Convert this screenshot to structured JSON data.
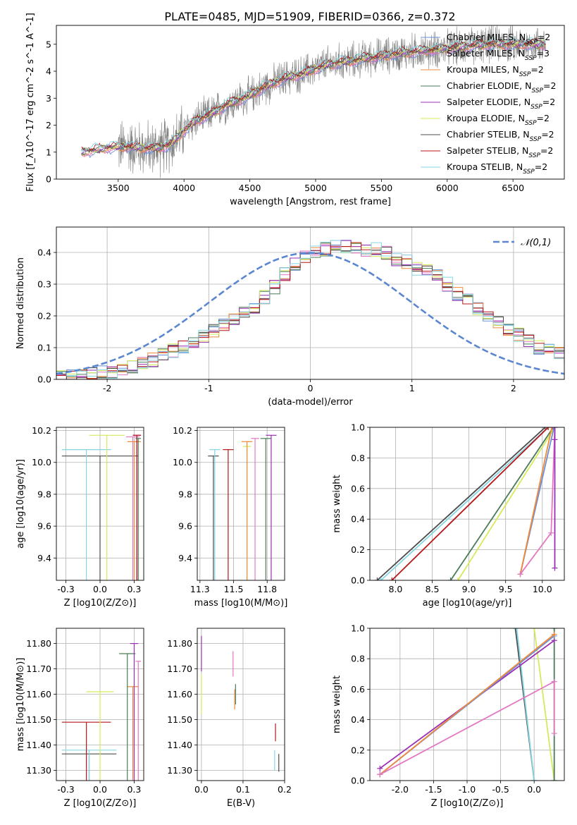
{
  "figure": {
    "title": "PLATE=0485, MJD=51909, FIBERID=0366, z=0.372"
  },
  "colors": {
    "chabrier_miles": "#6b8fd6",
    "salpeter_miles": "#e377c2",
    "kroupa_miles": "#f08a3b",
    "chabrier_elodie": "#4a7c59",
    "salpeter_elodie": "#9a2fb5",
    "kroupa_elodie": "#d7e95b",
    "chabrier_stelib": "#4b4b4b",
    "salpeter_stelib": "#b5171a",
    "kroupa_stelib": "#86d6e3",
    "observed": "#808080",
    "normal": "#5b86d0"
  },
  "chart_data": [
    {
      "id": "spectrum",
      "type": "line",
      "xlabel": "wavelength [Angstrom, rest frame]",
      "ylabel": "Flux [f_λ10^-17 erg cm^-2 s^-1 A^-1]",
      "xlim": [
        3030,
        6890
      ],
      "ylim": [
        0,
        5.7
      ],
      "xticks": [
        3500,
        4000,
        4500,
        5000,
        5500,
        6000,
        6500
      ],
      "yticks": [
        0,
        1,
        2,
        3,
        4,
        5
      ],
      "legend_position": "top-right",
      "legend": [
        {
          "key": "chabrier_miles",
          "base": "Chabrier MILES, N",
          "sub": "SSP",
          "tail": "=2"
        },
        {
          "key": "salpeter_miles",
          "base": "Salpeter MILES, N",
          "sub": "SSP",
          "tail": "=3"
        },
        {
          "key": "kroupa_miles",
          "base": "Kroupa MILES, N",
          "sub": "SSP",
          "tail": "=2"
        },
        {
          "key": "chabrier_elodie",
          "base": "Chabrier ELODIE, N",
          "sub": "SSP",
          "tail": "=2"
        },
        {
          "key": "salpeter_elodie",
          "base": "Salpeter ELODIE, N",
          "sub": "SSP",
          "tail": "=2"
        },
        {
          "key": "kroupa_elodie",
          "base": "Kroupa ELODIE, N",
          "sub": "SSP",
          "tail": "=2"
        },
        {
          "key": "chabrier_stelib",
          "base": "Chabrier STELIB, N",
          "sub": "SSP",
          "tail": "=2"
        },
        {
          "key": "salpeter_stelib",
          "base": "Salpeter STELIB, N",
          "sub": "SSP",
          "tail": "=2"
        },
        {
          "key": "kroupa_stelib",
          "base": "Kroupa STELIB, N",
          "sub": "SSP",
          "tail": "=2"
        }
      ],
      "observed_start": 3500,
      "model_start": 3220,
      "continuum": {
        "x": [
          3220,
          3400,
          3500,
          3600,
          3700,
          3800,
          3900,
          4000,
          4100,
          4200,
          4300,
          4400,
          4500,
          4600,
          4700,
          4800,
          4900,
          5000,
          5100,
          5200,
          5300,
          5400,
          5500,
          5600,
          5700,
          5800,
          5900,
          6000,
          6100,
          6200,
          6300,
          6400,
          6500,
          6600,
          6750
        ],
        "y": [
          1.0,
          1.15,
          1.2,
          1.2,
          1.15,
          1.15,
          1.3,
          1.8,
          2.2,
          2.4,
          2.7,
          2.9,
          3.1,
          3.4,
          3.6,
          3.8,
          3.9,
          4.1,
          4.25,
          4.35,
          4.4,
          4.5,
          4.55,
          4.65,
          4.7,
          4.75,
          4.8,
          4.85,
          4.9,
          4.95,
          5.0,
          5.0,
          5.0,
          5.0,
          5.0
        ]
      }
    },
    {
      "id": "residuals",
      "type": "line",
      "xlabel": "(data-model)/error",
      "ylabel": "Normed distribution",
      "xlim": [
        -2.5,
        2.5
      ],
      "ylim": [
        0,
        0.48
      ],
      "xticks": [
        -2,
        -1,
        0,
        1,
        2
      ],
      "yticks": [
        0.0,
        0.1,
        0.2,
        0.3,
        0.4
      ],
      "legend_label": "𝒩(0,1)",
      "legend_position": "top-right",
      "bin_width": 0.1,
      "bin_start": -2.5,
      "base_hist": [
        0.005,
        0.008,
        0.012,
        0.015,
        0.02,
        0.025,
        0.03,
        0.04,
        0.05,
        0.062,
        0.075,
        0.09,
        0.105,
        0.12,
        0.138,
        0.155,
        0.17,
        0.19,
        0.21,
        0.23,
        0.26,
        0.29,
        0.33,
        0.36,
        0.39,
        0.4,
        0.41,
        0.42,
        0.42,
        0.41,
        0.41,
        0.41,
        0.4,
        0.38,
        0.37,
        0.35,
        0.34,
        0.33,
        0.3,
        0.27,
        0.25,
        0.22,
        0.2,
        0.18,
        0.16,
        0.14,
        0.12,
        0.1,
        0.09,
        0.08,
        0.07,
        0.065,
        0.06,
        0.055,
        0.05,
        0.045,
        0.04,
        0.045,
        0.05,
        0.05
      ]
    },
    {
      "id": "age_vs_z",
      "type": "scatter",
      "xlabel": "Z [log10(Z/Z⊙)]",
      "ylabel": "age [log10(age/yr)]",
      "xlim": [
        -0.32,
        0.32
      ],
      "ylim": [
        9.26,
        10.22
      ],
      "xticks": [
        -0.25,
        0.0,
        0.25
      ],
      "yticks": [
        9.4,
        9.6,
        9.8,
        10.0,
        10.2
      ],
      "grid": true,
      "series": [
        {
          "key": "chabrier_stelib",
          "points": [
            {
              "x": 0.0,
              "xerr": 0.28,
              "y": 10.04
            }
          ]
        },
        {
          "key": "kroupa_stelib",
          "points": [
            {
              "x": -0.1,
              "xerr": 0.18,
              "y": 10.08
            }
          ]
        },
        {
          "key": "kroupa_elodie",
          "points": [
            {
              "x": 0.05,
              "xerr": 0.13,
              "y": 10.17
            }
          ]
        },
        {
          "key": "salpeter_miles",
          "points": [
            {
              "x": 0.24,
              "xerr": 0.05,
              "y": 10.16
            }
          ]
        },
        {
          "key": "kroupa_miles",
          "points": [
            {
              "x": 0.25,
              "xerr": 0.05,
              "y": 10.13
            }
          ]
        },
        {
          "key": "salpeter_elodie",
          "points": [
            {
              "x": 0.27,
              "xerr": 0.03,
              "y": 10.17
            }
          ]
        },
        {
          "key": "salpeter_stelib",
          "points": [
            {
              "x": 0.27,
              "xerr": 0.03,
              "y": 10.17
            }
          ]
        },
        {
          "key": "chabrier_elodie",
          "points": [
            {
              "x": 0.28,
              "xerr": 0.02,
              "y": 10.15
            }
          ]
        }
      ]
    },
    {
      "id": "age_vs_mass",
      "type": "scatter",
      "xlabel": "mass [log10(M/M⊙)]",
      "ylabel": "",
      "xlim": [
        11.23,
        11.88
      ],
      "ylim": [
        9.26,
        10.22
      ],
      "xticks": [
        11.25,
        11.5,
        11.75
      ],
      "yticks": [
        9.4,
        9.6,
        9.8,
        10.0,
        10.2
      ],
      "grid": true,
      "series": [
        {
          "key": "chabrier_stelib",
          "points": [
            {
              "x": 11.35,
              "xerr": 0.04,
              "y": 10.04
            }
          ]
        },
        {
          "key": "kroupa_stelib",
          "points": [
            {
              "x": 11.36,
              "xerr": 0.04,
              "y": 10.08
            }
          ]
        },
        {
          "key": "salpeter_stelib",
          "points": [
            {
              "x": 11.46,
              "xerr": 0.04,
              "y": 10.08
            }
          ]
        },
        {
          "key": "kroupa_elodie",
          "points": [
            {
              "x": 11.6,
              "xerr": 0.03,
              "y": 10.1
            }
          ]
        },
        {
          "key": "kroupa_miles",
          "points": [
            {
              "x": 11.6,
              "xerr": 0.04,
              "y": 10.13
            }
          ]
        },
        {
          "key": "salpeter_miles",
          "points": [
            {
              "x": 11.66,
              "xerr": 0.03,
              "y": 10.15
            }
          ]
        },
        {
          "key": "chabrier_elodie",
          "points": [
            {
              "x": 11.74,
              "xerr": 0.04,
              "y": 10.15
            }
          ]
        },
        {
          "key": "salpeter_elodie",
          "points": [
            {
              "x": 11.78,
              "xerr": 0.04,
              "y": 10.17
            }
          ]
        }
      ]
    },
    {
      "id": "mass_weight_vs_age",
      "type": "line",
      "xlabel": "age [log10(age/yr)]",
      "ylabel": "mass weight",
      "xlim": [
        7.65,
        10.3
      ],
      "ylim": [
        0,
        1.0
      ],
      "xticks": [
        8.0,
        8.5,
        9.0,
        9.5,
        10.0
      ],
      "yticks": [
        0.0,
        0.2,
        0.4,
        0.6,
        0.8,
        1.0
      ],
      "grid": true,
      "series": [
        {
          "key": "chabrier_stelib",
          "x": [
            7.75,
            10.04
          ],
          "y": [
            0.0,
            1.0
          ]
        },
        {
          "key": "kroupa_stelib",
          "x": [
            7.8,
            10.08
          ],
          "y": [
            0.0,
            1.0
          ]
        },
        {
          "key": "salpeter_stelib",
          "x": [
            7.95,
            10.08
          ],
          "y": [
            0.0,
            1.0
          ]
        },
        {
          "key": "chabrier_elodie",
          "x": [
            8.75,
            10.15
          ],
          "y": [
            0.0,
            1.0
          ]
        },
        {
          "key": "kroupa_elodie",
          "x": [
            8.85,
            10.17
          ],
          "y": [
            0.0,
            1.0
          ]
        },
        {
          "key": "chabrier_miles",
          "x": [
            9.7,
            10.16
          ],
          "y": [
            0.04,
            1.0
          ]
        },
        {
          "key": "kroupa_miles",
          "x": [
            9.7,
            10.13
          ],
          "y": [
            0.04,
            1.0
          ]
        },
        {
          "key": "salpeter_miles",
          "x": [
            9.7,
            10.12,
            10.17
          ],
          "y": [
            0.04,
            0.31,
            1.0
          ]
        },
        {
          "key": "salpeter_elodie",
          "x": [
            10.17,
            10.17,
            10.17
          ],
          "y": [
            0.08,
            0.92,
            1.0
          ]
        }
      ]
    },
    {
      "id": "mass_vs_z",
      "type": "scatter",
      "xlabel": "Z [log10(Z/Z⊙)]",
      "ylabel": "mass [log10(M/M⊙)]",
      "xlim": [
        -0.32,
        0.32
      ],
      "ylim": [
        11.26,
        11.86
      ],
      "xticks": [
        -0.25,
        0.0,
        0.25
      ],
      "yticks": [
        11.3,
        11.4,
        11.5,
        11.6,
        11.7,
        11.8
      ],
      "grid": true,
      "series": [
        {
          "key": "chabrier_stelib",
          "points": [
            {
              "x": -0.08,
              "xerr": 0.2,
              "y": 11.365
            }
          ]
        },
        {
          "key": "kroupa_stelib",
          "points": [
            {
              "x": -0.08,
              "xerr": 0.2,
              "y": 11.38
            }
          ]
        },
        {
          "key": "salpeter_stelib",
          "points": [
            {
              "x": -0.1,
              "xerr": 0.18,
              "y": 11.49
            }
          ]
        },
        {
          "key": "kroupa_elodie",
          "points": [
            {
              "x": 0.0,
              "xerr": 0.1,
              "y": 11.61
            }
          ]
        },
        {
          "key": "kroupa_miles",
          "points": [
            {
              "x": 0.24,
              "xerr": 0.04,
              "y": 11.63
            }
          ]
        },
        {
          "key": "chabrier_elodie",
          "points": [
            {
              "x": 0.2,
              "xerr": 0.06,
              "y": 11.76
            }
          ]
        },
        {
          "key": "salpeter_elodie",
          "points": [
            {
              "x": 0.25,
              "xerr": 0.03,
              "y": 11.8
            }
          ]
        },
        {
          "key": "salpeter_miles",
          "points": [
            {
              "x": 0.28,
              "xerr": 0.02,
              "y": 11.73
            }
          ]
        }
      ]
    },
    {
      "id": "mass_vs_ebv",
      "type": "scatter",
      "xlabel": "E(B-V)",
      "ylabel": "",
      "xlim": [
        -0.01,
        0.2
      ],
      "ylim": [
        11.26,
        11.86
      ],
      "xticks": [
        0.0,
        0.1,
        0.2
      ],
      "yticks": [
        11.3,
        11.4,
        11.5,
        11.6,
        11.7,
        11.8
      ],
      "grid": true,
      "series": [
        {
          "key": "salpeter_elodie",
          "points": [
            {
              "x": 0.0,
              "y": 11.76,
              "yerr": 0.07
            }
          ]
        },
        {
          "key": "kroupa_elodie",
          "points": [
            {
              "x": 0.0,
              "y": 11.6,
              "yerr": 0.08
            }
          ]
        },
        {
          "key": "salpeter_miles",
          "points": [
            {
              "x": 0.076,
              "y": 11.72,
              "yerr": 0.05
            }
          ]
        },
        {
          "key": "kroupa_miles",
          "points": [
            {
              "x": 0.08,
              "y": 11.58,
              "yerr": 0.04
            }
          ]
        },
        {
          "key": "chabrier_elodie",
          "points": [
            {
              "x": 0.082,
              "y": 11.6,
              "yerr": 0.04
            }
          ]
        },
        {
          "key": "salpeter_stelib",
          "points": [
            {
              "x": 0.178,
              "y": 11.45,
              "yerr": 0.035
            }
          ]
        },
        {
          "key": "kroupa_stelib",
          "points": [
            {
              "x": 0.176,
              "y": 11.34,
              "yerr": 0.04
            }
          ]
        },
        {
          "key": "chabrier_stelib",
          "points": [
            {
              "x": 0.186,
              "y": 11.33,
              "yerr": 0.035
            }
          ]
        }
      ]
    },
    {
      "id": "mass_weight_vs_z",
      "type": "line",
      "xlabel": "Z [log10(Z/Z⊙)]",
      "ylabel": "mass weight",
      "xlim": [
        -2.45,
        0.45
      ],
      "ylim": [
        0,
        1.0
      ],
      "xticks": [
        -2.0,
        -1.5,
        -1.0,
        -0.5,
        0.0
      ],
      "yticks": [
        0.0,
        0.2,
        0.4,
        0.6,
        0.8,
        1.0
      ],
      "grid": true,
      "series": [
        {
          "key": "chabrier_stelib",
          "x": [
            -0.28,
            0.0
          ],
          "y": [
            1.0,
            0.0
          ]
        },
        {
          "key": "kroupa_stelib",
          "x": [
            -0.26,
            0.0
          ],
          "y": [
            1.0,
            0.0
          ]
        },
        {
          "key": "kroupa_elodie",
          "x": [
            0.0,
            0.3
          ],
          "y": [
            1.0,
            0.0
          ]
        },
        {
          "key": "chabrier_elodie",
          "x": [
            0.3,
            0.3
          ],
          "y": [
            0.0,
            1.0
          ]
        },
        {
          "key": "salpeter_elodie",
          "x": [
            -2.3,
            0.3
          ],
          "y": [
            0.08,
            0.92
          ]
        },
        {
          "key": "chabrier_miles",
          "x": [
            -2.3,
            0.3
          ],
          "y": [
            0.04,
            0.95
          ]
        },
        {
          "key": "kroupa_miles",
          "x": [
            -2.3,
            0.3
          ],
          "y": [
            0.04,
            0.96
          ]
        },
        {
          "key": "salpeter_miles",
          "x": [
            -2.3,
            0.3,
            0.3
          ],
          "y": [
            0.04,
            0.65,
            0.31
          ]
        }
      ]
    }
  ]
}
